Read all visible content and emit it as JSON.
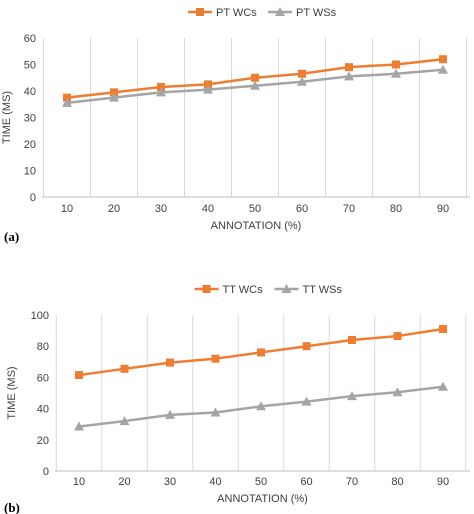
{
  "chart_data": [
    {
      "type": "line",
      "panel_label": "(a)",
      "xlabel": "ANNOTATION (%)",
      "ylabel": "TIME (MS)",
      "categories": [
        "10",
        "20",
        "30",
        "40",
        "50",
        "60",
        "70",
        "80",
        "90"
      ],
      "ylim": [
        0,
        60
      ],
      "yticks": [
        0,
        10,
        20,
        30,
        40,
        50,
        60
      ],
      "grid": "vertical",
      "legend_position": "top",
      "series": [
        {
          "name": "PT WCs",
          "color": "#ED7D31",
          "marker": "square",
          "values": [
            37.5,
            39.5,
            41.5,
            42.5,
            45,
            46.5,
            49,
            50,
            52
          ]
        },
        {
          "name": "PT WSs",
          "color": "#A5A5A5",
          "marker": "triangle",
          "values": [
            35.5,
            37.5,
            39.5,
            40.5,
            42,
            43.5,
            45.5,
            46.5,
            48
          ]
        }
      ]
    },
    {
      "type": "line",
      "panel_label": "(b)",
      "xlabel": "ANNOTATION (%)",
      "ylabel": "TIME (MS)",
      "categories": [
        "10",
        "20",
        "30",
        "40",
        "50",
        "60",
        "70",
        "80",
        "90"
      ],
      "ylim": [
        0,
        100
      ],
      "yticks": [
        0,
        20,
        40,
        60,
        80,
        100
      ],
      "grid": "vertical",
      "legend_position": "top",
      "series": [
        {
          "name": "TT WCs",
          "color": "#ED7D31",
          "marker": "square",
          "values": [
            61.5,
            65.5,
            69.5,
            72,
            76,
            80,
            84,
            86.5,
            91
          ]
        },
        {
          "name": "TT WSs",
          "color": "#A5A5A5",
          "marker": "triangle",
          "values": [
            28.5,
            32,
            36,
            37.5,
            41.5,
            44.5,
            48,
            50.5,
            54
          ]
        }
      ]
    }
  ]
}
